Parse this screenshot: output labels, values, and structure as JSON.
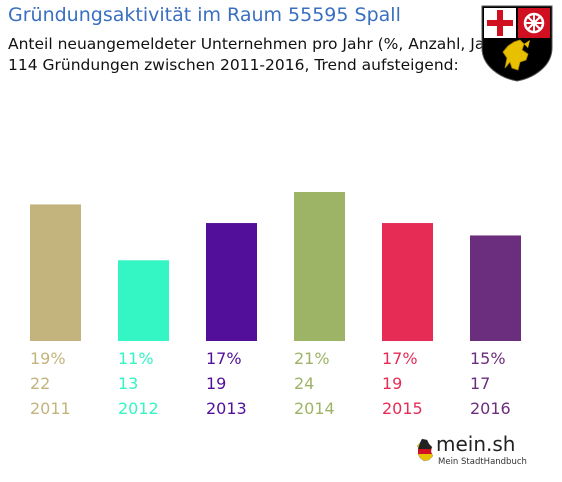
{
  "title": "Gründungsaktivität im Raum 55595 Spall",
  "subtitle_line1": "Anteil neuangemeldeter Unternehmen pro Jahr (%, Anzahl, Jahr)",
  "subtitle_line2": "114 Gründungen zwischen 2011-2016, Trend aufsteigend:",
  "crest_icon": "rheinland-pfalz-coat-of-arms-icon",
  "logo": {
    "main": "mein.sh",
    "sub": "Mein StadtHandbuch",
    "icon": "germany-map-icon"
  },
  "chart_data": {
    "type": "bar",
    "categories": [
      "2011",
      "2012",
      "2013",
      "2014",
      "2015",
      "2016"
    ],
    "percent_labels": [
      "19%",
      "11%",
      "17%",
      "21%",
      "17%",
      "15%"
    ],
    "values": [
      22,
      13,
      19,
      24,
      19,
      17
    ],
    "colors": [
      "#c2b47c",
      "#34f5c4",
      "#52109a",
      "#9db466",
      "#e62c55",
      "#6b2d7d"
    ],
    "ylim": [
      0,
      24
    ],
    "grid": false
  }
}
